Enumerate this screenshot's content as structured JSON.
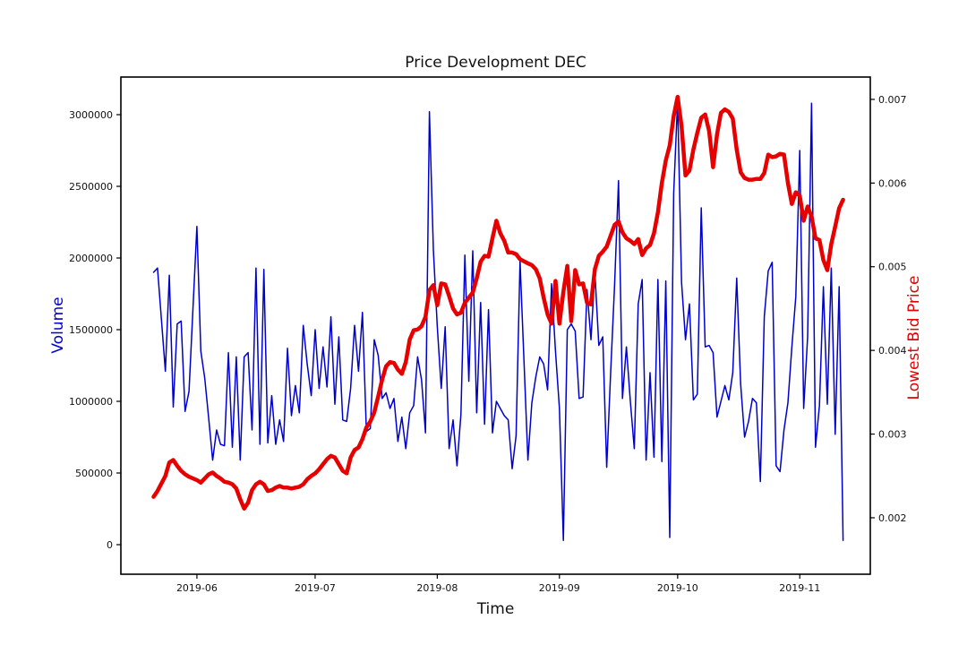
{
  "figure": {
    "title": "Price Development DEC",
    "xlabel": "Time",
    "ylabel_left": "Volume",
    "ylabel_right": "Lowest Bid Price",
    "colors": {
      "volume_line": "#0000cd",
      "price_line": "#e60000",
      "axis": "#000000",
      "background": "#ffffff",
      "tick_text": "#111111"
    }
  },
  "chart_data": {
    "type": "line",
    "title": "Price Development DEC",
    "xlabel": "Time",
    "ylabel_left": "Volume",
    "ylabel_right": "Lowest Bid Price",
    "grid": false,
    "legend": "none",
    "x_tick_labels": [
      "2019-06",
      "2019-07",
      "2019-08",
      "2019-09",
      "2019-10",
      "2019-11"
    ],
    "x_tick_doy": [
      152,
      182,
      213,
      244,
      274,
      305
    ],
    "y_left_ticks": [
      0,
      500000,
      1000000,
      1500000,
      2000000,
      2500000,
      3000000
    ],
    "y_right_ticks": [
      0.002,
      0.003,
      0.004,
      0.005,
      0.006,
      0.007
    ],
    "x_domain_doy": [
      132.7,
      322.9
    ],
    "y_left_domain": [
      -206250,
      3262500
    ],
    "y_right_domain": [
      0.001325,
      0.007267
    ],
    "dates": [
      "05-21",
      "05-22",
      "05-24",
      "05-25",
      "05-26",
      "05-27",
      "05-28",
      "05-29",
      "05-30",
      "06-01",
      "06-02",
      "06-03",
      "06-04",
      "06-05",
      "06-06",
      "06-07",
      "06-08",
      "06-09",
      "06-10",
      "06-11",
      "06-12",
      "06-13",
      "06-14",
      "06-15",
      "06-16",
      "06-17",
      "06-18",
      "06-19",
      "06-20",
      "06-21",
      "06-22",
      "06-23",
      "06-24",
      "06-25",
      "06-26",
      "06-27",
      "06-28",
      "06-29",
      "06-30",
      "07-01",
      "07-02",
      "07-03",
      "07-04",
      "07-05",
      "07-06",
      "07-07",
      "07-08",
      "07-09",
      "07-10",
      "07-11",
      "07-12",
      "07-13",
      "07-14",
      "07-15",
      "07-16",
      "07-17",
      "07-18",
      "07-19",
      "07-20",
      "07-21",
      "07-22",
      "07-23",
      "07-24",
      "07-25",
      "07-26",
      "07-27",
      "07-28",
      "07-29",
      "07-30",
      "07-31",
      "08-01",
      "08-02",
      "08-03",
      "08-04",
      "08-05",
      "08-06",
      "08-07",
      "08-08",
      "08-09",
      "08-10",
      "08-11",
      "08-12",
      "08-13",
      "08-14",
      "08-15",
      "08-16",
      "08-17",
      "08-18",
      "08-19",
      "08-20",
      "08-21",
      "08-22",
      "08-24",
      "08-25",
      "08-26",
      "08-27",
      "08-28",
      "08-29",
      "08-30",
      "08-31",
      "09-01",
      "09-02",
      "09-03",
      "09-04",
      "09-05",
      "09-06",
      "09-07",
      "09-08",
      "09-09",
      "09-10",
      "09-11",
      "09-12",
      "09-13",
      "09-14",
      "09-15",
      "09-16",
      "09-17",
      "09-18",
      "09-19",
      "09-20",
      "09-21",
      "09-22",
      "09-23",
      "09-24",
      "09-25",
      "09-26",
      "09-27",
      "09-28",
      "09-29",
      "09-30",
      "10-01",
      "10-02",
      "10-03",
      "10-04",
      "10-05",
      "10-06",
      "10-07",
      "10-08",
      "10-09",
      "10-10",
      "10-11",
      "10-12",
      "10-13",
      "10-14",
      "10-15",
      "10-16",
      "10-17",
      "10-18",
      "10-19",
      "10-20",
      "10-21",
      "10-22",
      "10-23",
      "10-24",
      "10-25",
      "10-26",
      "10-27",
      "10-28",
      "10-29",
      "10-30",
      "10-31",
      "11-01",
      "11-02",
      "11-03",
      "11-04",
      "11-05",
      "11-06",
      "11-07",
      "11-08",
      "11-09",
      "11-10",
      "11-11",
      "11-12"
    ],
    "series": [
      {
        "name": "Volume",
        "axis": "left",
        "color": "#0000cd",
        "linewidth": 1.5,
        "values": [
          1900000,
          1930000,
          1210000,
          1880000,
          960000,
          1540000,
          1560000,
          930000,
          1070000,
          2220000,
          1350000,
          1160000,
          880000,
          590000,
          800000,
          700000,
          690000,
          1340000,
          680000,
          1310000,
          590000,
          1310000,
          1340000,
          800000,
          1930000,
          700000,
          1920000,
          710000,
          1040000,
          700000,
          870000,
          720000,
          1370000,
          900000,
          1110000,
          920000,
          1530000,
          1260000,
          1040000,
          1500000,
          1090000,
          1380000,
          1100000,
          1590000,
          980000,
          1450000,
          870000,
          860000,
          1090000,
          1530000,
          1210000,
          1620000,
          790000,
          810000,
          1430000,
          1320000,
          1020000,
          1060000,
          950000,
          1020000,
          720000,
          890000,
          670000,
          920000,
          970000,
          1310000,
          1150000,
          780000,
          3020000,
          2060000,
          1520000,
          1090000,
          1520000,
          670000,
          870000,
          550000,
          910000,
          2020000,
          1140000,
          2050000,
          920000,
          1690000,
          840000,
          1640000,
          780000,
          1000000,
          950000,
          900000,
          870000,
          530000,
          760000,
          1980000,
          590000,
          990000,
          1170000,
          1310000,
          1260000,
          1080000,
          1820000,
          1350000,
          950000,
          30000,
          1500000,
          1540000,
          1490000,
          1020000,
          1030000,
          1780000,
          1430000,
          1900000,
          1390000,
          1450000,
          540000,
          1200000,
          1810000,
          2540000,
          1020000,
          1380000,
          1000000,
          670000,
          1680000,
          1850000,
          590000,
          1200000,
          610000,
          1850000,
          580000,
          1840000,
          50000,
          2450000,
          3100000,
          1830000,
          1430000,
          1680000,
          1010000,
          1050000,
          2350000,
          1380000,
          1390000,
          1340000,
          890000,
          1000000,
          1110000,
          1010000,
          1200000,
          1860000,
          1120000,
          750000,
          860000,
          1020000,
          990000,
          440000,
          1590000,
          1910000,
          1970000,
          550000,
          510000,
          800000,
          990000,
          1380000,
          1730000,
          2750000,
          950000,
          1450000,
          3080000,
          680000,
          970000,
          1800000,
          980000,
          1930000,
          770000,
          1800000,
          30000
        ]
      },
      {
        "name": "Lowest Bid Price",
        "axis": "right",
        "color": "#e60000",
        "linewidth": 4.5,
        "values": [
          0.00225,
          0.00232,
          0.0025,
          0.00266,
          0.00269,
          0.00262,
          0.00256,
          0.00252,
          0.00249,
          0.00245,
          0.00242,
          0.00247,
          0.00252,
          0.00254,
          0.0025,
          0.00247,
          0.00243,
          0.00242,
          0.0024,
          0.00235,
          0.00222,
          0.00211,
          0.00218,
          0.00233,
          0.0024,
          0.00243,
          0.0024,
          0.00232,
          0.00233,
          0.00236,
          0.00238,
          0.00236,
          0.00236,
          0.00235,
          0.00236,
          0.00237,
          0.0024,
          0.00246,
          0.0025,
          0.00253,
          0.00258,
          0.00264,
          0.0027,
          0.00274,
          0.00272,
          0.00264,
          0.00256,
          0.00253,
          0.00272,
          0.00281,
          0.00284,
          0.00294,
          0.00308,
          0.00315,
          0.00326,
          0.00345,
          0.00365,
          0.00381,
          0.00386,
          0.00385,
          0.00377,
          0.00372,
          0.00386,
          0.00413,
          0.00424,
          0.00425,
          0.00429,
          0.0044,
          0.00472,
          0.00478,
          0.00454,
          0.0048,
          0.00479,
          0.00465,
          0.0045,
          0.00443,
          0.00445,
          0.00457,
          0.00463,
          0.00469,
          0.00486,
          0.00506,
          0.00513,
          0.00512,
          0.00534,
          0.00555,
          0.0054,
          0.00531,
          0.00517,
          0.00517,
          0.00515,
          0.00509,
          0.00504,
          0.00502,
          0.00497,
          0.00486,
          0.00463,
          0.00443,
          0.00432,
          0.00483,
          0.00432,
          0.0047,
          0.00501,
          0.00435,
          0.00496,
          0.00479,
          0.0048,
          0.00457,
          0.00455,
          0.00497,
          0.00513,
          0.00518,
          0.00524,
          0.00537,
          0.0055,
          0.00554,
          0.00541,
          0.00534,
          0.00531,
          0.00527,
          0.00533,
          0.00514,
          0.00522,
          0.00526,
          0.0054,
          0.00565,
          0.006,
          0.00627,
          0.00645,
          0.0068,
          0.00703,
          0.00668,
          0.00609,
          0.00615,
          0.0064,
          0.0066,
          0.00678,
          0.00682,
          0.00662,
          0.00619,
          0.00658,
          0.00684,
          0.00688,
          0.00685,
          0.00677,
          0.0064,
          0.00613,
          0.00606,
          0.00604,
          0.00604,
          0.00605,
          0.00605,
          0.00612,
          0.00634,
          0.00631,
          0.00632,
          0.00635,
          0.00634,
          0.006,
          0.00575,
          0.00589,
          0.00585,
          0.00555,
          0.00572,
          0.0056,
          0.00534,
          0.00532,
          0.00508,
          0.00496,
          0.00527,
          0.00548,
          0.0057,
          0.0058
        ]
      }
    ]
  }
}
